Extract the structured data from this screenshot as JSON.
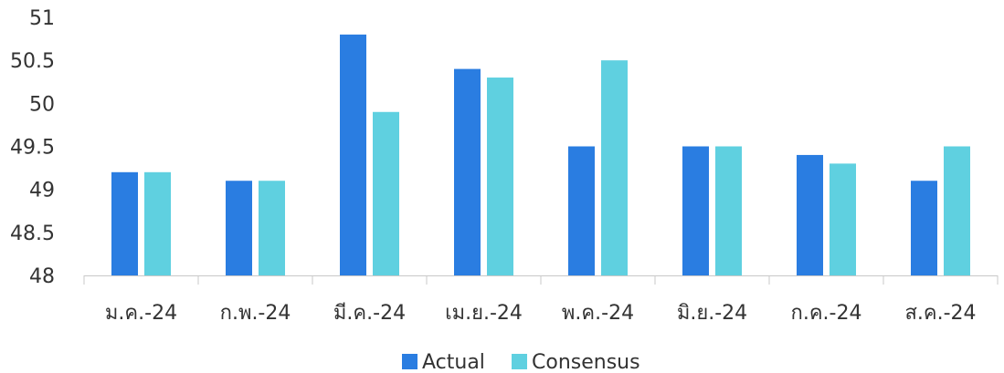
{
  "chart_data": {
    "type": "bar",
    "categories": [
      "ม.ค.-24",
      "ก.พ.-24",
      "มี.ค.-24",
      "เม.ย.-24",
      "พ.ค.-24",
      "มิ.ย.-24",
      "ก.ค.-24",
      "ส.ค.-24"
    ],
    "series": [
      {
        "name": "Actual",
        "values": [
          49.2,
          49.1,
          50.8,
          50.4,
          49.5,
          49.5,
          49.4,
          49.1
        ],
        "color": "#2A7DE1"
      },
      {
        "name": "Consensus",
        "values": [
          49.2,
          49.1,
          49.9,
          50.3,
          50.5,
          49.5,
          49.3,
          49.5
        ],
        "color": "#5FD0E0"
      }
    ],
    "ylim": [
      48,
      51
    ],
    "yticks": [
      "48",
      "48.5",
      "49",
      "49.5",
      "50",
      "50.5",
      "51"
    ],
    "grid": false,
    "legend": "bottom-center"
  }
}
